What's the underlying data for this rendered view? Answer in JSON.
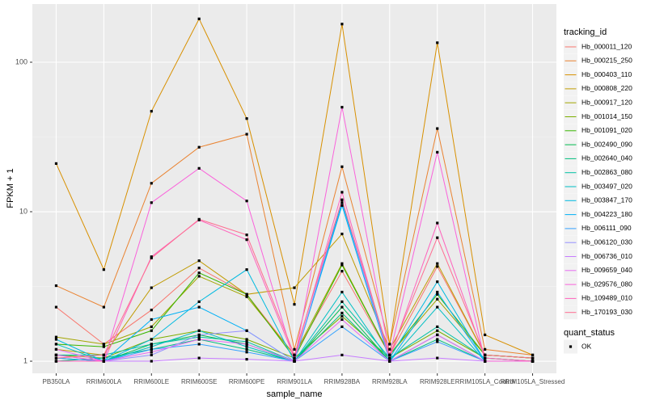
{
  "chart_data": {
    "type": "line",
    "x_label": "sample_name",
    "y_label": "FPKM + 1",
    "categories": [
      "PB350LA",
      "RRIM600LA",
      "RRIM600LE",
      "RRIM600SE",
      "RRIM600PE",
      "RRIM901LA",
      "RRIM928BA",
      "RRIM928LA",
      "RRIM928LE",
      "RRIM105LA_Control",
      "RRIM105LA_Stressed"
    ],
    "log_scale": true,
    "grid": true,
    "ylim": [
      0.83,
      245
    ],
    "yticks": [
      1,
      10,
      100
    ],
    "legend_title": "tracking_id",
    "legend_position": "right",
    "status_legend": {
      "title": "quant_status",
      "labels": [
        "OK"
      ],
      "color": "#000000"
    },
    "series": [
      {
        "name": "Hb_000011_120",
        "color": "#F8766D",
        "values": [
          2.3,
          1.3,
          2.2,
          4.2,
          2.8,
          1.1,
          4.0,
          1.1,
          4.3,
          1.1,
          1.05
        ]
      },
      {
        "name": "Hb_000215_250",
        "color": "#EA8331",
        "values": [
          3.2,
          2.3,
          15.5,
          27,
          33,
          1.2,
          20,
          1.3,
          36,
          1.2,
          1.1
        ]
      },
      {
        "name": "Hb_000403_110",
        "color": "#D89000",
        "values": [
          21,
          4.1,
          47,
          195,
          42,
          2.4,
          180,
          1.3,
          135,
          1.5,
          1.1
        ]
      },
      {
        "name": "Hb_000808_220",
        "color": "#C09B00",
        "values": [
          1.2,
          1.1,
          3.1,
          4.7,
          2.8,
          3.1,
          7.1,
          1.2,
          4.5,
          1.1,
          1.05
        ]
      },
      {
        "name": "Hb_000917_120",
        "color": "#A3A500",
        "values": [
          1.45,
          1.3,
          1.7,
          3.7,
          2.7,
          1.1,
          4.5,
          1.1,
          2.6,
          1.1,
          1.05
        ]
      },
      {
        "name": "Hb_001014_150",
        "color": "#7CAE00",
        "values": [
          1.1,
          1.05,
          1.4,
          1.6,
          1.4,
          1.05,
          2.0,
          1.05,
          1.6,
          1.05,
          1.0
        ]
      },
      {
        "name": "Hb_001091_020",
        "color": "#39B600",
        "values": [
          1.3,
          1.25,
          1.6,
          3.9,
          2.8,
          1.05,
          4.4,
          1.1,
          2.8,
          1.1,
          1.05
        ]
      },
      {
        "name": "Hb_002490_090",
        "color": "#00BB4E",
        "values": [
          1.05,
          1.0,
          1.3,
          1.5,
          1.3,
          1.0,
          2.3,
          1.0,
          1.5,
          1.0,
          1.0
        ]
      },
      {
        "name": "Hb_002640_040",
        "color": "#00BF7D",
        "values": [
          1.0,
          1.05,
          1.2,
          1.4,
          1.2,
          1.0,
          2.1,
          1.0,
          1.4,
          1.0,
          1.0
        ]
      },
      {
        "name": "Hb_002863_080",
        "color": "#00C1A3",
        "values": [
          1.1,
          1.1,
          1.3,
          1.45,
          1.35,
          1.0,
          2.5,
          1.05,
          1.7,
          1.05,
          1.0
        ]
      },
      {
        "name": "Hb_003497_020",
        "color": "#00BFC4",
        "values": [
          1.3,
          1.0,
          1.25,
          1.6,
          1.25,
          1.0,
          2.9,
          1.0,
          2.3,
          1.0,
          1.0
        ]
      },
      {
        "name": "Hb_003847_170",
        "color": "#00BAE0",
        "values": [
          1.4,
          1.0,
          1.4,
          2.5,
          4.1,
          1.0,
          11.5,
          1.05,
          3.4,
          1.0,
          1.0
        ]
      },
      {
        "name": "Hb_004223_180",
        "color": "#00B0F6",
        "values": [
          1.0,
          1.0,
          1.9,
          2.3,
          1.6,
          1.0,
          11,
          1.0,
          2.9,
          1.0,
          1.0
        ]
      },
      {
        "name": "Hb_006111_090",
        "color": "#35A2FF",
        "values": [
          1.05,
          1.0,
          1.2,
          1.3,
          1.15,
          1.0,
          1.7,
          1.0,
          1.35,
          1.0,
          1.0
        ]
      },
      {
        "name": "Hb_006120_030",
        "color": "#9590FF",
        "values": [
          1.1,
          1.0,
          1.1,
          1.5,
          1.6,
          1.0,
          12,
          1.0,
          1.5,
          1.0,
          1.0
        ]
      },
      {
        "name": "Hb_006736_010",
        "color": "#C77CFF",
        "values": [
          1.0,
          1.0,
          1.0,
          1.05,
          1.03,
          1.0,
          1.1,
          1.0,
          1.05,
          1.0,
          1.0
        ]
      },
      {
        "name": "Hb_009659_040",
        "color": "#E76BF3",
        "values": [
          1.2,
          1.0,
          1.15,
          1.4,
          1.3,
          1.0,
          1.9,
          1.0,
          1.5,
          1.0,
          1.0
        ]
      },
      {
        "name": "Hb_029576_080",
        "color": "#FA62DB",
        "values": [
          1.1,
          1.0,
          11.5,
          19.5,
          11.8,
          1.0,
          50,
          1.1,
          25,
          1.0,
          1.0
        ]
      },
      {
        "name": "Hb_109489_010",
        "color": "#FF62BC",
        "values": [
          1.0,
          1.0,
          5.0,
          8.8,
          6.5,
          1.05,
          13.5,
          1.05,
          8.4,
          1.05,
          1.0
        ]
      },
      {
        "name": "Hb_170193_030",
        "color": "#FF6C91",
        "values": [
          1.05,
          1.1,
          4.9,
          8.9,
          7.0,
          1.1,
          12,
          1.1,
          6.7,
          1.1,
          1.05
        ]
      }
    ]
  }
}
